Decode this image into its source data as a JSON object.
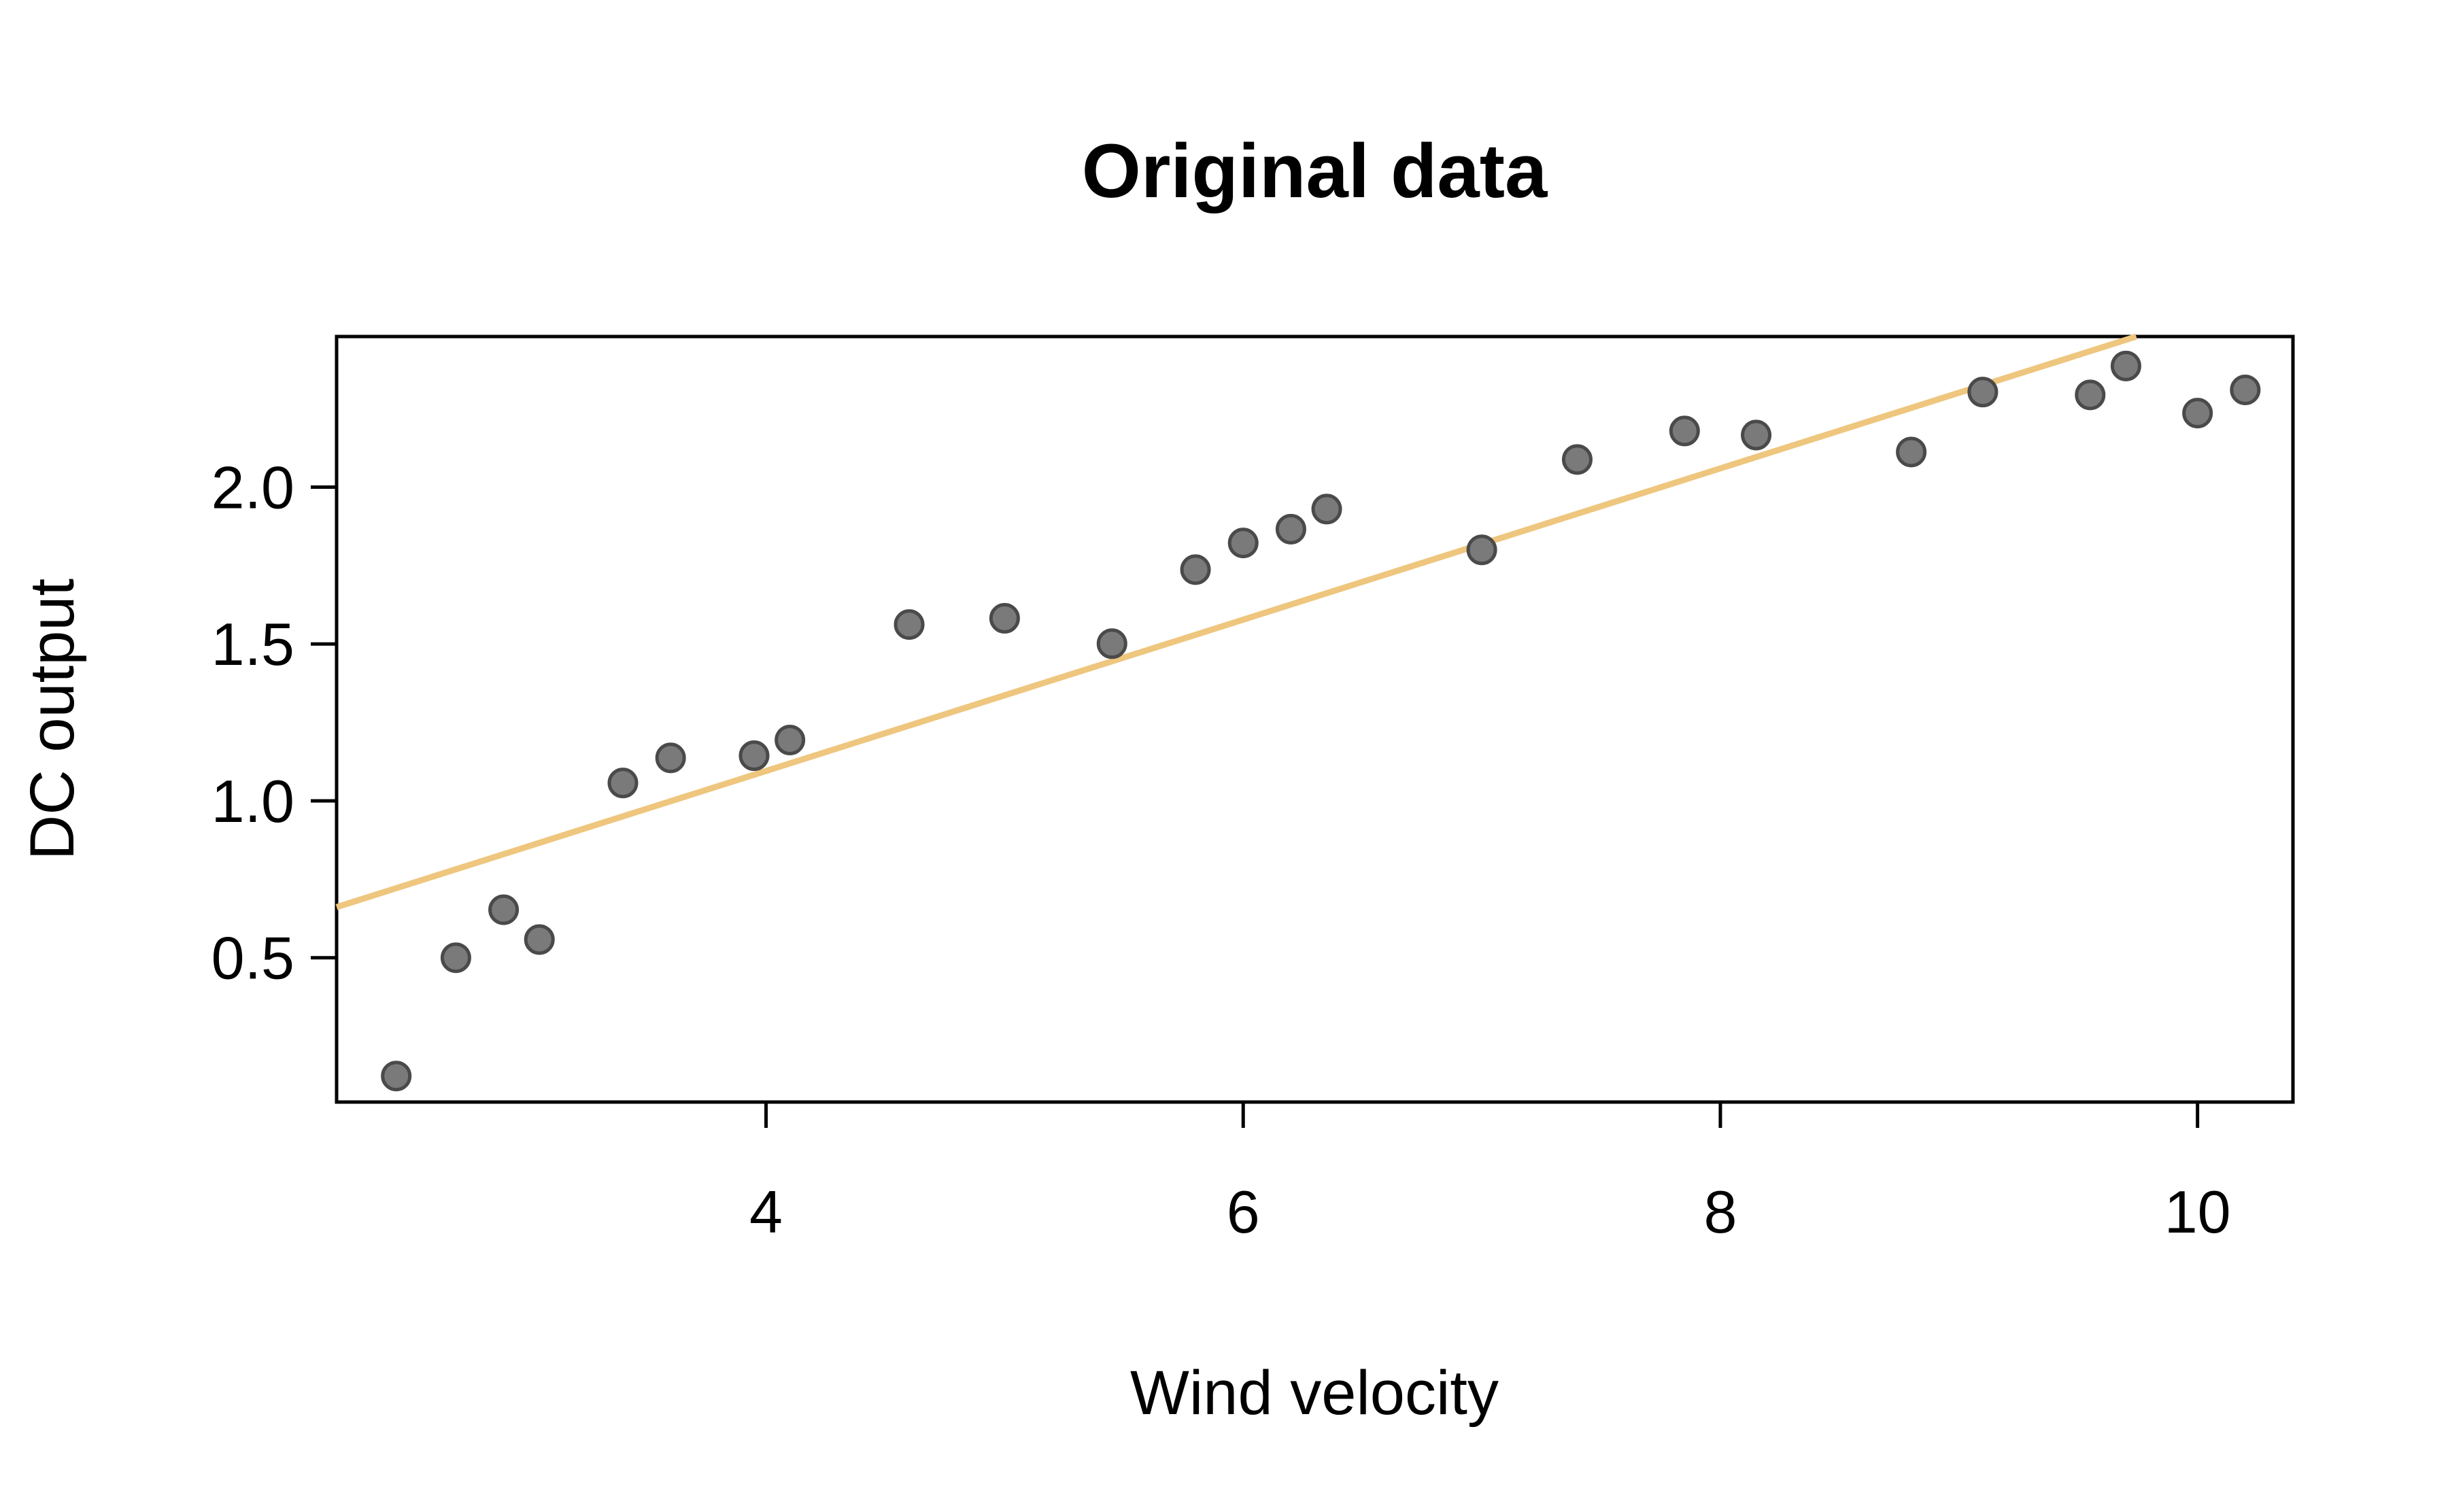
{
  "chart_data": {
    "type": "scatter",
    "title": "Original data",
    "xlabel": "Wind velocity",
    "ylabel": "DC output",
    "xlim": [
      2.2,
      10.4
    ],
    "ylim": [
      0.04,
      2.48
    ],
    "x_ticks": [
      4,
      6,
      8,
      10
    ],
    "y_ticks": [
      0.5,
      1.0,
      1.5,
      2.0
    ],
    "x_tick_labels": [
      "4",
      "6",
      "8",
      "10"
    ],
    "y_tick_labels": [
      "0.5",
      "1.0",
      "1.5",
      "2.0"
    ],
    "grid": false,
    "legend": "none",
    "point_color": "#7a7a7a",
    "point_edge_color": "#4a4a4a",
    "line_color": "#eec67e",
    "points": [
      {
        "x": 2.45,
        "y": 0.123
      },
      {
        "x": 2.7,
        "y": 0.5
      },
      {
        "x": 2.9,
        "y": 0.653
      },
      {
        "x": 3.05,
        "y": 0.558
      },
      {
        "x": 3.4,
        "y": 1.057
      },
      {
        "x": 3.6,
        "y": 1.137
      },
      {
        "x": 3.95,
        "y": 1.144
      },
      {
        "x": 4.1,
        "y": 1.194
      },
      {
        "x": 4.6,
        "y": 1.562
      },
      {
        "x": 5.0,
        "y": 1.582
      },
      {
        "x": 5.45,
        "y": 1.501
      },
      {
        "x": 5.8,
        "y": 1.737
      },
      {
        "x": 6.0,
        "y": 1.822
      },
      {
        "x": 6.2,
        "y": 1.866
      },
      {
        "x": 6.35,
        "y": 1.93
      },
      {
        "x": 7.0,
        "y": 1.8
      },
      {
        "x": 7.4,
        "y": 2.088
      },
      {
        "x": 7.85,
        "y": 2.179
      },
      {
        "x": 8.15,
        "y": 2.166
      },
      {
        "x": 8.8,
        "y": 2.112
      },
      {
        "x": 9.1,
        "y": 2.303
      },
      {
        "x": 9.55,
        "y": 2.294
      },
      {
        "x": 9.7,
        "y": 2.386
      },
      {
        "x": 10.0,
        "y": 2.236
      },
      {
        "x": 10.2,
        "y": 2.31
      }
    ],
    "fit_line": {
      "intercept": 0.1309,
      "slope": 0.2411
    }
  }
}
